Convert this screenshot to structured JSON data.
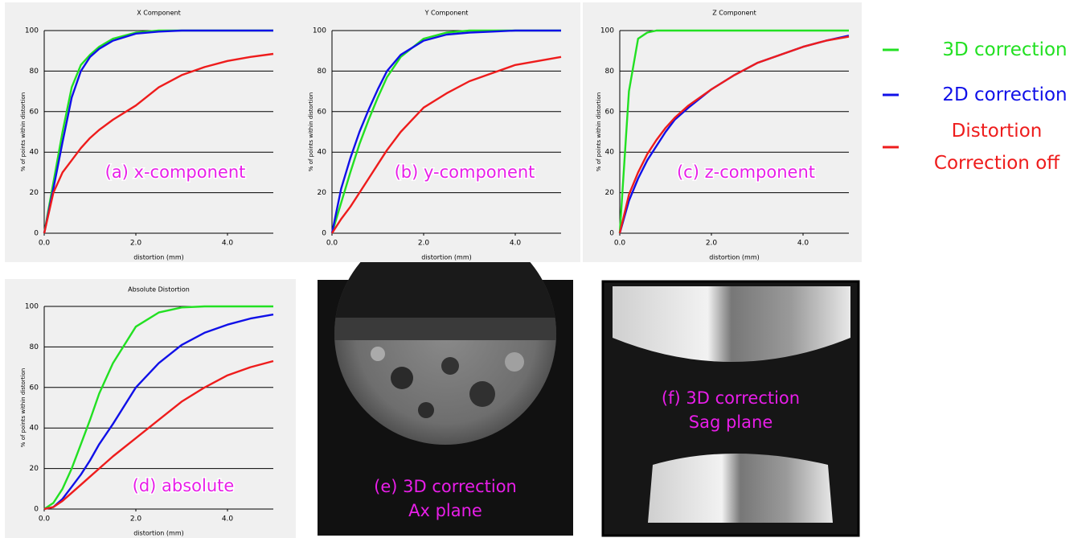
{
  "chart_data": [
    {
      "type": "line",
      "title": "X Component",
      "xlabel": "distortion (mm)",
      "ylabel": "% of points within distortion",
      "annotation": "(a) x-component",
      "x": [
        0,
        0.2,
        0.4,
        0.6,
        0.8,
        1.0,
        1.2,
        1.5,
        2,
        2.5,
        3,
        3.5,
        4,
        4.5,
        5
      ],
      "series": [
        {
          "name": "3D correction",
          "color": "#22e022",
          "values": [
            0,
            25,
            50,
            72,
            83,
            88,
            92,
            96,
            99,
            100,
            100,
            100,
            100,
            100,
            100
          ]
        },
        {
          "name": "2D correction",
          "color": "#1010e8",
          "values": [
            0,
            22,
            45,
            67,
            80,
            87,
            91,
            95,
            98.5,
            99.5,
            100,
            100,
            100,
            100,
            100
          ]
        },
        {
          "name": "Distortion Correction off",
          "color": "#ee1c1c",
          "values": [
            0,
            20,
            30,
            36,
            42,
            47,
            51,
            56,
            63,
            72,
            78,
            82,
            85,
            87,
            88.5
          ]
        }
      ],
      "xlim": [
        0,
        5
      ],
      "xticks": [
        {
          "value": 0,
          "label": "0.0"
        },
        {
          "value": 2,
          "label": "2.0"
        },
        {
          "value": 4,
          "label": "4.0"
        }
      ],
      "ylim": [
        0,
        100
      ],
      "yticks": [
        0,
        20,
        40,
        60,
        80,
        100
      ],
      "grid": true
    },
    {
      "type": "line",
      "title": "Y Component",
      "xlabel": "distortion (mm)",
      "ylabel": "% of points within distortion",
      "annotation": "(b) y-component",
      "x": [
        0,
        0.2,
        0.4,
        0.6,
        0.8,
        1.0,
        1.2,
        1.5,
        2,
        2.5,
        3,
        3.5,
        4,
        4.5,
        5
      ],
      "series": [
        {
          "color": "#22e022",
          "values": [
            0,
            15,
            30,
            44,
            56,
            67,
            77,
            87,
            96,
            99,
            100,
            100,
            100,
            100,
            100
          ]
        },
        {
          "color": "#1010e8",
          "values": [
            0,
            22,
            37,
            50,
            61,
            71,
            80,
            88,
            95,
            98,
            99,
            99.5,
            100,
            100,
            100
          ]
        },
        {
          "color": "#ee1c1c",
          "values": [
            0,
            7,
            13,
            20,
            27,
            34,
            41,
            50,
            62,
            69,
            75,
            79,
            83,
            85,
            87
          ]
        }
      ],
      "xlim": [
        0,
        5
      ],
      "xticks": [
        {
          "value": 0,
          "label": "0.0"
        },
        {
          "value": 2,
          "label": "2.0"
        },
        {
          "value": 4,
          "label": "4.0"
        }
      ],
      "ylim": [
        0,
        100
      ],
      "yticks": [
        0,
        20,
        40,
        60,
        80,
        100
      ],
      "grid": true
    },
    {
      "type": "line",
      "title": "Z Component",
      "xlabel": "distortion (mm)",
      "ylabel": "% of points within distortion",
      "annotation": "(c) z-component",
      "x": [
        0,
        0.2,
        0.4,
        0.6,
        0.8,
        1.0,
        1.2,
        1.5,
        2,
        2.5,
        3,
        3.5,
        4,
        4.5,
        5
      ],
      "series": [
        {
          "color": "#22e022",
          "values": [
            0,
            70,
            96,
            99,
            100,
            100,
            100,
            100,
            100,
            100,
            100,
            100,
            100,
            100,
            100
          ]
        },
        {
          "color": "#1010e8",
          "values": [
            0,
            16,
            27,
            36,
            43,
            50,
            56,
            62,
            71,
            78,
            84,
            88,
            92,
            95,
            97.5
          ]
        },
        {
          "color": "#ee1c1c",
          "values": [
            0,
            19,
            30,
            39,
            46,
            52,
            57,
            63,
            71,
            78,
            84,
            88,
            92,
            95,
            97
          ]
        }
      ],
      "xlim": [
        0,
        5
      ],
      "xticks": [
        {
          "value": 0,
          "label": "0.0"
        },
        {
          "value": 2,
          "label": "2.0"
        },
        {
          "value": 4,
          "label": "4.0"
        }
      ],
      "ylim": [
        0,
        100
      ],
      "yticks": [
        0,
        20,
        40,
        60,
        80,
        100
      ],
      "grid": true
    },
    {
      "type": "line",
      "title": "Absolute Distortion",
      "xlabel": "distortion (mm)",
      "ylabel": "% of points within distortion",
      "annotation": "(d) absolute",
      "x": [
        0,
        0.2,
        0.4,
        0.6,
        0.8,
        1.0,
        1.2,
        1.5,
        2,
        2.5,
        3,
        3.5,
        4,
        4.5,
        5
      ],
      "series": [
        {
          "color": "#22e022",
          "values": [
            0,
            3,
            10,
            20,
            32,
            44,
            57,
            72,
            90,
            97,
            99.5,
            100,
            100,
            100,
            100
          ]
        },
        {
          "color": "#1010e8",
          "values": [
            0,
            1,
            5,
            11,
            17,
            24,
            32,
            42,
            60,
            72,
            81,
            87,
            91,
            94,
            96
          ]
        },
        {
          "color": "#ee1c1c",
          "values": [
            0,
            1,
            4,
            8,
            12,
            16,
            20,
            26,
            35,
            44,
            53,
            60,
            66,
            70,
            73
          ]
        }
      ],
      "xlim": [
        0,
        5
      ],
      "xticks": [
        {
          "value": 0,
          "label": "0.0"
        },
        {
          "value": 2,
          "label": "2.0"
        },
        {
          "value": 4,
          "label": "4.0"
        }
      ],
      "ylim": [
        0,
        100
      ],
      "yticks": [
        0,
        20,
        40,
        60,
        80,
        100
      ],
      "grid": true
    }
  ],
  "images": [
    {
      "caption": [
        "(e) 3D correction",
        "Ax plane"
      ]
    },
    {
      "caption": [
        "(f) 3D correction",
        "Sag plane"
      ]
    }
  ]
}
